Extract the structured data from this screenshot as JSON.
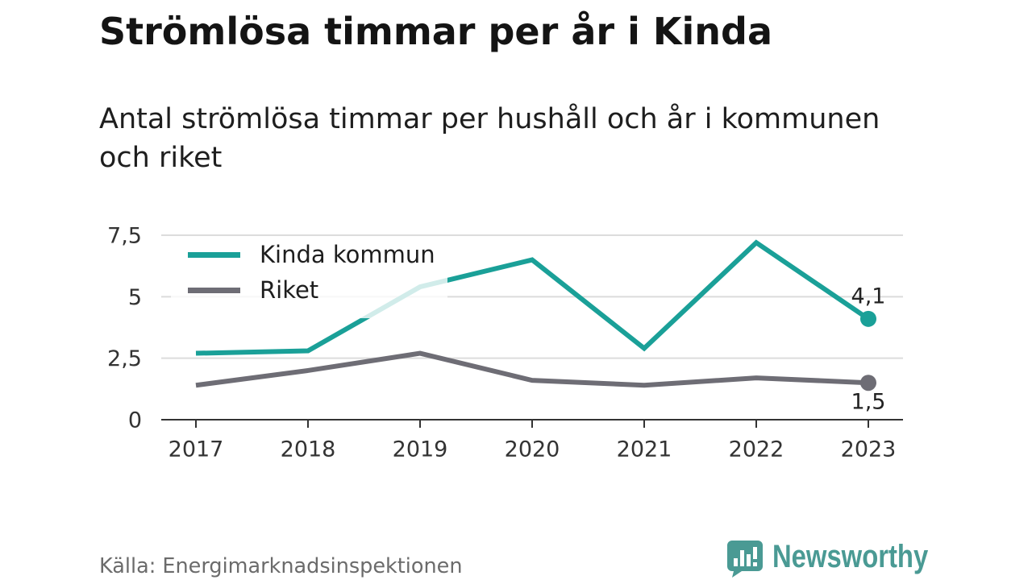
{
  "colors": {
    "title": "#141414",
    "text": "#1e1e1e",
    "axis": "#333333",
    "grid": "#dcdcdc",
    "source": "#6b6b6b",
    "brand": "#4a9a94"
  },
  "chart_data": {
    "type": "line",
    "title": "Strömlösa timmar per år i Kinda",
    "subtitle": "Antal strömlösa timmar per hushåll och år i kommunen och riket",
    "x": [
      "2017",
      "2018",
      "2019",
      "2020",
      "2021",
      "2022",
      "2023"
    ],
    "series": [
      {
        "name": "Kinda kommun",
        "color": "#1aa098",
        "values": [
          2.7,
          2.8,
          5.4,
          6.5,
          2.9,
          7.2,
          4.1
        ],
        "end_label": "4,1"
      },
      {
        "name": "Riket",
        "color": "#6e6d75",
        "values": [
          1.4,
          2.0,
          2.7,
          1.6,
          1.4,
          1.7,
          1.5
        ],
        "end_label": "1,5"
      }
    ],
    "ylim": [
      0,
      7.5
    ],
    "yticks": [
      0,
      2.5,
      5,
      7.5
    ],
    "ytick_labels": [
      "0",
      "2,5",
      "5",
      "7,5"
    ],
    "grid": true,
    "legend": "top-left",
    "source": "Källa: Energimarknadsinspektionen"
  },
  "footer": {
    "brand": "Newsworthy",
    "brand_icon": "newsworthy-logo-icon"
  }
}
